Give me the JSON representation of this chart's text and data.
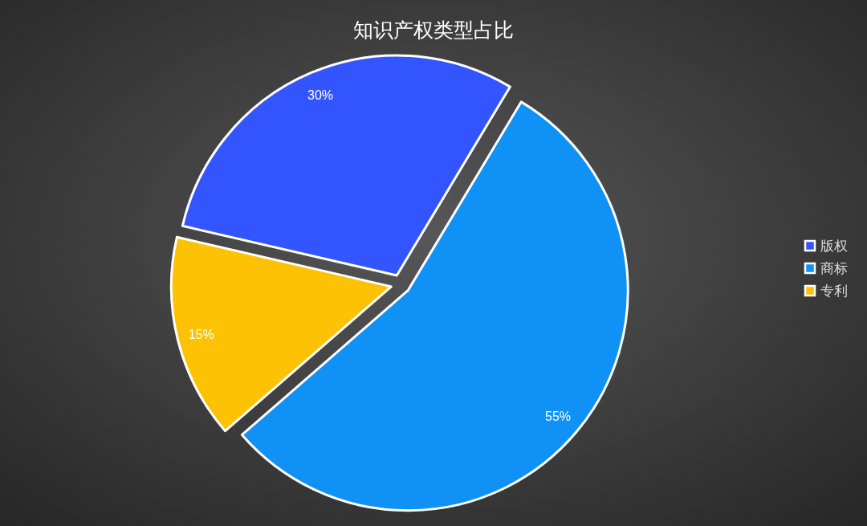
{
  "chart_data": {
    "type": "pie",
    "title": "知识产权类型占比",
    "categories": [
      "版权",
      "商标",
      "专利"
    ],
    "values": [
      30,
      55,
      15
    ],
    "colors": [
      "#3355ff",
      "#0f91f5",
      "#fcc203"
    ],
    "value_labels": [
      "30%",
      "55%",
      "15%"
    ],
    "legend": "right"
  }
}
